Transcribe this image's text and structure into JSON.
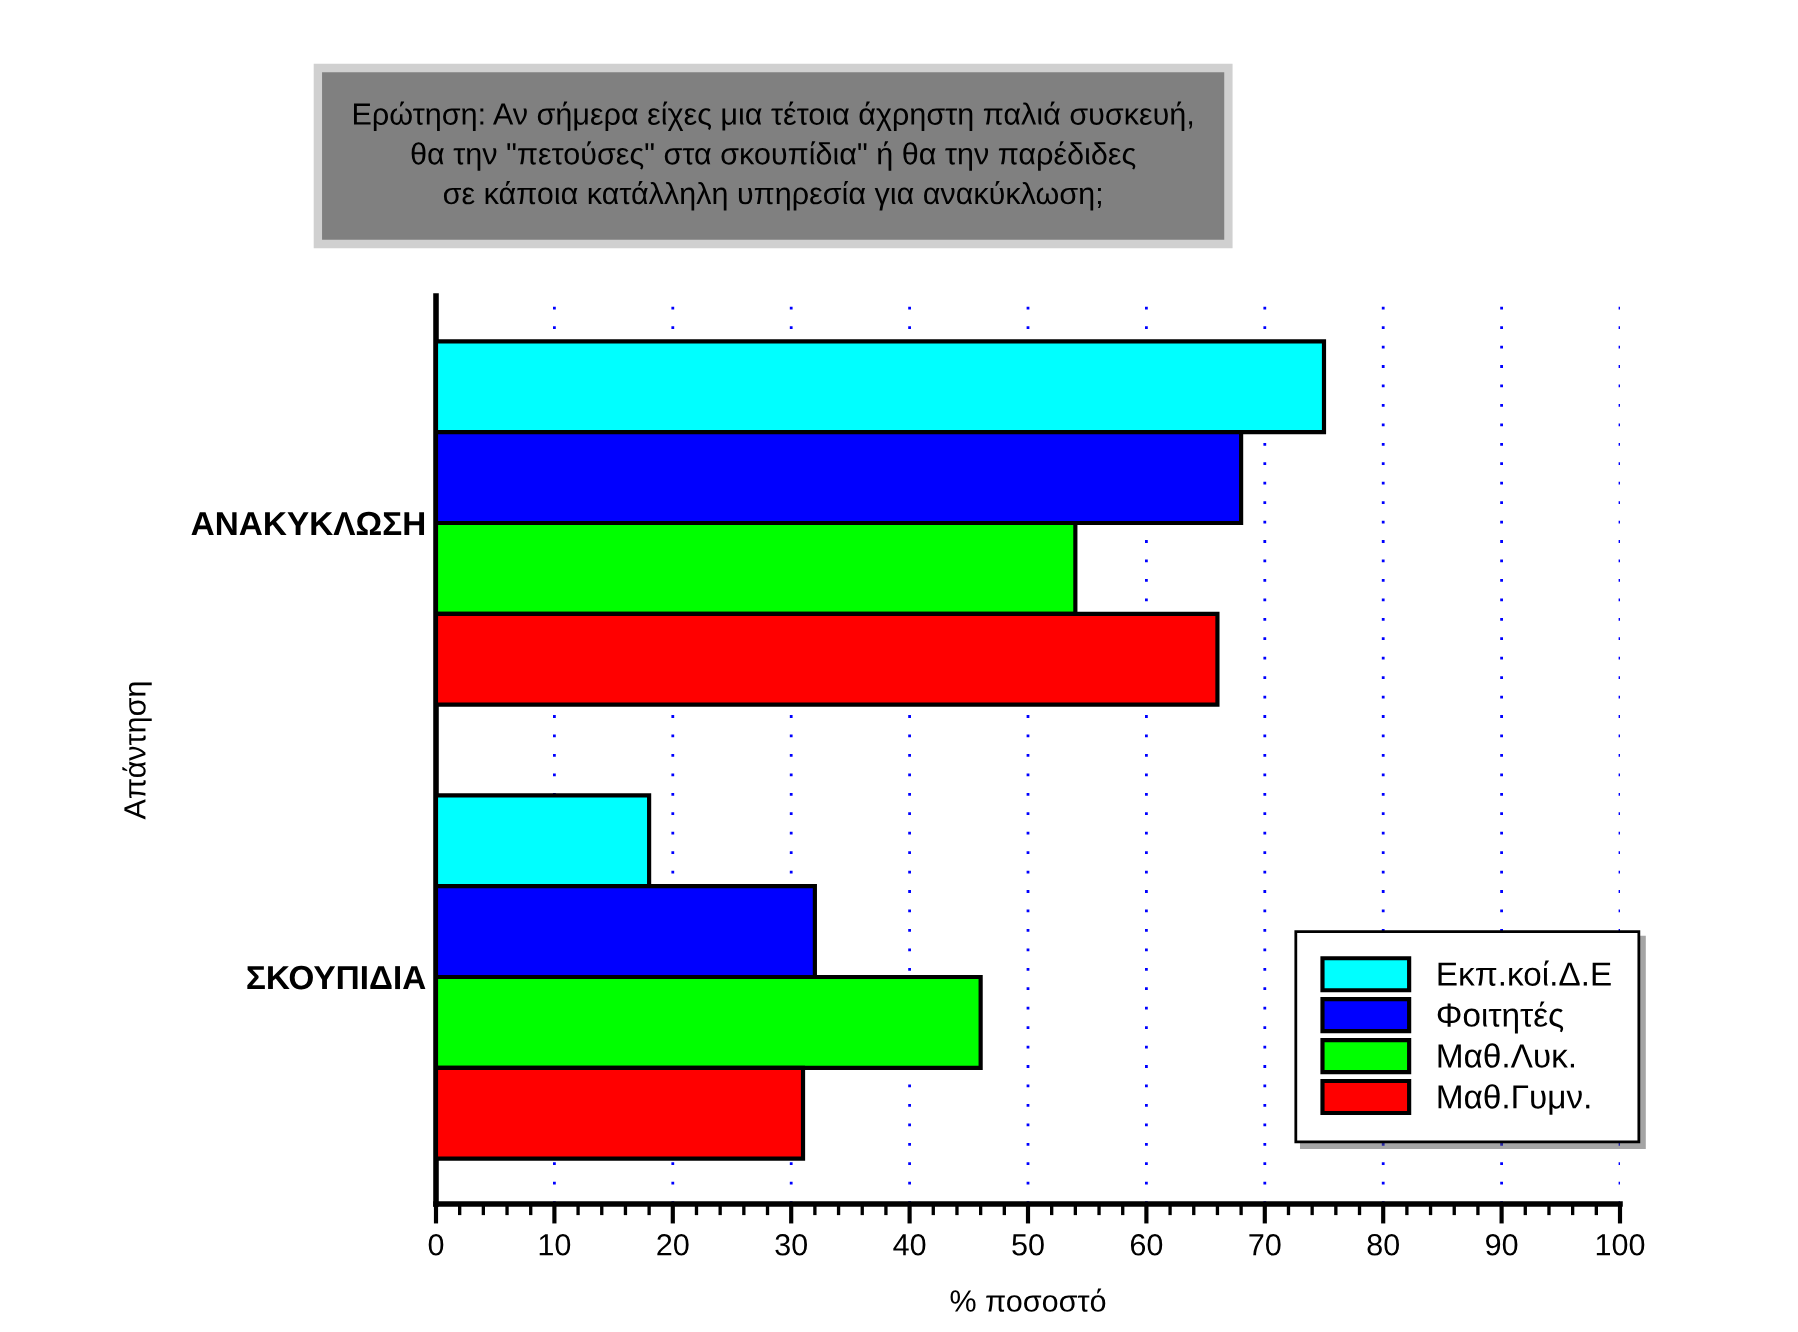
{
  "chart_data": {
    "type": "bar",
    "orientation": "horizontal",
    "title": "Ερώτηση: Αν σήμερα είχες μια τέτοια άχρηστη παλιά συσκευή,\nθα την \"πετούσες\" στα σκουπίδια\" ή θα την παρέδιδες\nσε κάποια κατάλληλη υπηρεσία για ανακύκλωση;",
    "xlabel": "% ποσοστό",
    "ylabel": "Απάντηση",
    "categories": [
      "ΑΝΑΚΥΚΛΩΣΗ",
      "ΣΚΟΥΠΙΔΙΑ"
    ],
    "series": [
      {
        "name": "Εκπ.κοί.Δ.Ε",
        "color": "#00ffff",
        "values": [
          75,
          18
        ]
      },
      {
        "name": "Φοιτητές",
        "color": "#0000ff",
        "values": [
          68,
          32
        ]
      },
      {
        "name": "Μαθ.Λυκ.",
        "color": "#00ff00",
        "values": [
          54,
          46
        ]
      },
      {
        "name": "Μαθ.Γυμν.",
        "color": "#ff0000",
        "values": [
          66,
          31
        ]
      }
    ],
    "xlim": [
      0,
      100
    ],
    "xticks": [
      0,
      10,
      20,
      30,
      40,
      50,
      60,
      70,
      80,
      90,
      100
    ],
    "grid": "x",
    "legend": "bottom right"
  }
}
